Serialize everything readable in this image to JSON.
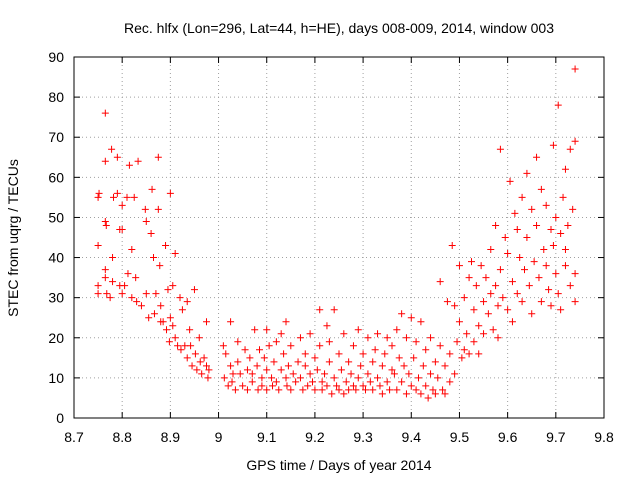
{
  "chart_data": {
    "type": "scatter",
    "title": "Rec. hlfx (Lon=296, Lat=44, h=HE), days 008-009, 2014, window 003",
    "xlabel": "GPS time / Days of year 2014",
    "ylabel": "STEC from uqrg / TECUs",
    "xlim": [
      8.7,
      9.8
    ],
    "ylim": [
      0,
      90
    ],
    "xticks": [
      "8.7",
      "8.8",
      "8.9",
      "9",
      "9.1",
      "9.2",
      "9.3",
      "9.4",
      "9.5",
      "9.6",
      "9.7",
      "9.8"
    ],
    "yticks": [
      "0",
      "10",
      "20",
      "30",
      "40",
      "50",
      "60",
      "70",
      "80",
      "90"
    ],
    "grid": true,
    "marker": "+",
    "color": "#ff0000",
    "points": [
      [
        8.75,
        55
      ],
      [
        8.75,
        43
      ],
      [
        8.75,
        33
      ],
      [
        8.75,
        31
      ],
      [
        8.752,
        56
      ],
      [
        8.765,
        76
      ],
      [
        8.765,
        64
      ],
      [
        8.765,
        49
      ],
      [
        8.767,
        48
      ],
      [
        8.765,
        37
      ],
      [
        8.765,
        35
      ],
      [
        8.768,
        31
      ],
      [
        8.775,
        30
      ],
      [
        8.778,
        67
      ],
      [
        8.78,
        40
      ],
      [
        8.78,
        34
      ],
      [
        8.782,
        55
      ],
      [
        8.79,
        65
      ],
      [
        8.79,
        56
      ],
      [
        8.795,
        47
      ],
      [
        8.795,
        33
      ],
      [
        8.8,
        53
      ],
      [
        8.8,
        47
      ],
      [
        8.8,
        31
      ],
      [
        8.805,
        33
      ],
      [
        8.81,
        55
      ],
      [
        8.812,
        36
      ],
      [
        8.815,
        63
      ],
      [
        8.82,
        42
      ],
      [
        8.82,
        30
      ],
      [
        8.825,
        55
      ],
      [
        8.828,
        35
      ],
      [
        8.83,
        29
      ],
      [
        8.833,
        64
      ],
      [
        8.84,
        28
      ],
      [
        8.848,
        52
      ],
      [
        8.85,
        49
      ],
      [
        8.85,
        31
      ],
      [
        8.855,
        25
      ],
      [
        8.86,
        46
      ],
      [
        8.862,
        57
      ],
      [
        8.865,
        40
      ],
      [
        8.867,
        26
      ],
      [
        8.87,
        31
      ],
      [
        8.875,
        65
      ],
      [
        8.875,
        52
      ],
      [
        8.878,
        38
      ],
      [
        8.88,
        28
      ],
      [
        8.88,
        24
      ],
      [
        8.885,
        24
      ],
      [
        8.89,
        43
      ],
      [
        8.892,
        22
      ],
      [
        8.895,
        32
      ],
      [
        8.898,
        19
      ],
      [
        8.9,
        56
      ],
      [
        8.9,
        25
      ],
      [
        8.905,
        33
      ],
      [
        8.905,
        23
      ],
      [
        8.91,
        41
      ],
      [
        8.91,
        20
      ],
      [
        8.915,
        18
      ],
      [
        8.92,
        30
      ],
      [
        8.922,
        17
      ],
      [
        8.925,
        27
      ],
      [
        8.93,
        18
      ],
      [
        8.935,
        29
      ],
      [
        8.935,
        15
      ],
      [
        8.94,
        22
      ],
      [
        8.942,
        18
      ],
      [
        8.945,
        13
      ],
      [
        8.95,
        32
      ],
      [
        8.952,
        16
      ],
      [
        8.955,
        12
      ],
      [
        8.96,
        20
      ],
      [
        8.962,
        14
      ],
      [
        8.965,
        11
      ],
      [
        8.97,
        15
      ],
      [
        8.975,
        24
      ],
      [
        8.975,
        13
      ],
      [
        8.978,
        10
      ],
      [
        8.98,
        12
      ],
      [
        9.01,
        18
      ],
      [
        9.012,
        10
      ],
      [
        9.015,
        16
      ],
      [
        9.02,
        8
      ],
      [
        9.025,
        24
      ],
      [
        9.025,
        13
      ],
      [
        9.028,
        9
      ],
      [
        9.03,
        11
      ],
      [
        9.035,
        7
      ],
      [
        9.04,
        19
      ],
      [
        9.04,
        14
      ],
      [
        9.045,
        11
      ],
      [
        9.05,
        8
      ],
      [
        9.055,
        17
      ],
      [
        9.06,
        12
      ],
      [
        9.06,
        7
      ],
      [
        9.065,
        15
      ],
      [
        9.07,
        11
      ],
      [
        9.07,
        9
      ],
      [
        9.075,
        22
      ],
      [
        9.08,
        13
      ],
      [
        9.082,
        7
      ],
      [
        9.085,
        17
      ],
      [
        9.09,
        10
      ],
      [
        9.09,
        8
      ],
      [
        9.095,
        15
      ],
      [
        9.1,
        22
      ],
      [
        9.1,
        12
      ],
      [
        9.1,
        7
      ],
      [
        9.105,
        18
      ],
      [
        9.11,
        10
      ],
      [
        9.112,
        8
      ],
      [
        9.115,
        14
      ],
      [
        9.12,
        19
      ],
      [
        9.12,
        9
      ],
      [
        9.125,
        7
      ],
      [
        9.13,
        12
      ],
      [
        9.13,
        21
      ],
      [
        9.135,
        16
      ],
      [
        9.14,
        24
      ],
      [
        9.14,
        10
      ],
      [
        9.142,
        8
      ],
      [
        9.145,
        13
      ],
      [
        9.15,
        18
      ],
      [
        9.15,
        7
      ],
      [
        9.155,
        11
      ],
      [
        9.16,
        9
      ],
      [
        9.165,
        14
      ],
      [
        9.17,
        20
      ],
      [
        9.17,
        10
      ],
      [
        9.175,
        7
      ],
      [
        9.18,
        13
      ],
      [
        9.18,
        16
      ],
      [
        9.185,
        8
      ],
      [
        9.19,
        11
      ],
      [
        9.19,
        21
      ],
      [
        9.195,
        9
      ],
      [
        9.2,
        15
      ],
      [
        9.2,
        7
      ],
      [
        9.205,
        12
      ],
      [
        9.21,
        27
      ],
      [
        9.21,
        18
      ],
      [
        9.215,
        9
      ],
      [
        9.215,
        7
      ],
      [
        9.22,
        11
      ],
      [
        9.225,
        23
      ],
      [
        9.225,
        8
      ],
      [
        9.23,
        14
      ],
      [
        9.23,
        19
      ],
      [
        9.235,
        6
      ],
      [
        9.24,
        10
      ],
      [
        9.24,
        27
      ],
      [
        9.245,
        8
      ],
      [
        9.25,
        16
      ],
      [
        9.25,
        7
      ],
      [
        9.255,
        12
      ],
      [
        9.26,
        6
      ],
      [
        9.26,
        21
      ],
      [
        9.265,
        9
      ],
      [
        9.27,
        14
      ],
      [
        9.27,
        7
      ],
      [
        9.275,
        11
      ],
      [
        9.28,
        18
      ],
      [
        9.28,
        8
      ],
      [
        9.285,
        7
      ],
      [
        9.29,
        10
      ],
      [
        9.29,
        22
      ],
      [
        9.295,
        13
      ],
      [
        9.3,
        8
      ],
      [
        9.3,
        16
      ],
      [
        9.305,
        7
      ],
      [
        9.31,
        20
      ],
      [
        9.31,
        11
      ],
      [
        9.315,
        9
      ],
      [
        9.32,
        14
      ],
      [
        9.32,
        7
      ],
      [
        9.325,
        17
      ],
      [
        9.33,
        10
      ],
      [
        9.33,
        21
      ],
      [
        9.335,
        8
      ],
      [
        9.34,
        13
      ],
      [
        9.34,
        6
      ],
      [
        9.345,
        16
      ],
      [
        9.35,
        9
      ],
      [
        9.35,
        20
      ],
      [
        9.355,
        7
      ],
      [
        9.36,
        12
      ],
      [
        9.36,
        18
      ],
      [
        9.365,
        11
      ],
      [
        9.37,
        22
      ],
      [
        9.37,
        7
      ],
      [
        9.375,
        15
      ],
      [
        9.38,
        9
      ],
      [
        9.38,
        26
      ],
      [
        9.385,
        13
      ],
      [
        9.39,
        6
      ],
      [
        9.39,
        20
      ],
      [
        9.395,
        11
      ],
      [
        9.4,
        8
      ],
      [
        9.4,
        25
      ],
      [
        9.405,
        15
      ],
      [
        9.41,
        7
      ],
      [
        9.41,
        19
      ],
      [
        9.415,
        10
      ],
      [
        9.42,
        6
      ],
      [
        9.42,
        24
      ],
      [
        9.425,
        13
      ],
      [
        9.43,
        8
      ],
      [
        9.43,
        17
      ],
      [
        9.435,
        5
      ],
      [
        9.44,
        11
      ],
      [
        9.44,
        20
      ],
      [
        9.445,
        7
      ],
      [
        9.45,
        14
      ],
      [
        9.45,
        6
      ],
      [
        9.455,
        10
      ],
      [
        9.46,
        34
      ],
      [
        9.46,
        18
      ],
      [
        9.465,
        7
      ],
      [
        9.47,
        13
      ],
      [
        9.47,
        6
      ],
      [
        9.475,
        29
      ],
      [
        9.48,
        9
      ],
      [
        9.48,
        16
      ],
      [
        9.485,
        43
      ],
      [
        9.49,
        28
      ],
      [
        9.49,
        11
      ],
      [
        9.495,
        19
      ],
      [
        9.5,
        38
      ],
      [
        9.5,
        24
      ],
      [
        9.505,
        15
      ],
      [
        9.51,
        30
      ],
      [
        9.51,
        17
      ],
      [
        9.515,
        21
      ],
      [
        9.52,
        35
      ],
      [
        9.52,
        16
      ],
      [
        9.525,
        39
      ],
      [
        9.53,
        27
      ],
      [
        9.53,
        19
      ],
      [
        9.535,
        33
      ],
      [
        9.54,
        23
      ],
      [
        9.54,
        16
      ],
      [
        9.545,
        38
      ],
      [
        9.55,
        29
      ],
      [
        9.55,
        21
      ],
      [
        9.555,
        35
      ],
      [
        9.56,
        26
      ],
      [
        9.565,
        42
      ],
      [
        9.565,
        31
      ],
      [
        9.57,
        22
      ],
      [
        9.575,
        48
      ],
      [
        9.575,
        33
      ],
      [
        9.58,
        28
      ],
      [
        9.58,
        20
      ],
      [
        9.585,
        67
      ],
      [
        9.585,
        37
      ],
      [
        9.59,
        30
      ],
      [
        9.595,
        45
      ],
      [
        9.6,
        41
      ],
      [
        9.6,
        27
      ],
      [
        9.605,
        59
      ],
      [
        9.61,
        34
      ],
      [
        9.61,
        24
      ],
      [
        9.615,
        51
      ],
      [
        9.62,
        47
      ],
      [
        9.62,
        31
      ],
      [
        9.625,
        40
      ],
      [
        9.63,
        55
      ],
      [
        9.63,
        29
      ],
      [
        9.635,
        37
      ],
      [
        9.64,
        61
      ],
      [
        9.64,
        45
      ],
      [
        9.645,
        33
      ],
      [
        9.65,
        52
      ],
      [
        9.65,
        26
      ],
      [
        9.655,
        39
      ],
      [
        9.66,
        65
      ],
      [
        9.66,
        48
      ],
      [
        9.665,
        35
      ],
      [
        9.67,
        57
      ],
      [
        9.67,
        29
      ],
      [
        9.675,
        42
      ],
      [
        9.68,
        53
      ],
      [
        9.68,
        38
      ],
      [
        9.685,
        32
      ],
      [
        9.69,
        47
      ],
      [
        9.69,
        28
      ],
      [
        9.695,
        68
      ],
      [
        9.695,
        43
      ],
      [
        9.7,
        36
      ],
      [
        9.7,
        50
      ],
      [
        9.705,
        78
      ],
      [
        9.705,
        31
      ],
      [
        9.71,
        46
      ],
      [
        9.71,
        27
      ],
      [
        9.715,
        55
      ],
      [
        9.72,
        62
      ],
      [
        9.72,
        42
      ],
      [
        9.72,
        38
      ],
      [
        9.725,
        48
      ],
      [
        9.73,
        33
      ],
      [
        9.73,
        67
      ],
      [
        9.735,
        52
      ],
      [
        9.74,
        87
      ],
      [
        9.74,
        69
      ],
      [
        9.74,
        36
      ],
      [
        9.74,
        29
      ]
    ]
  }
}
